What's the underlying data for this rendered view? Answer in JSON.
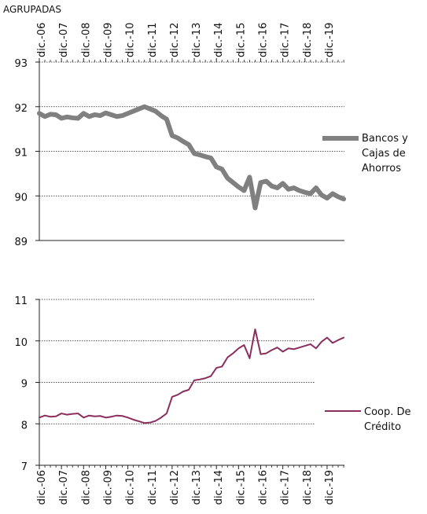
{
  "header_text": "AGRUPADAS",
  "categories": [
    "dic.-06",
    "dic.-07",
    "dic.-08",
    "dic.-09",
    "dic.-10",
    "dic.-11",
    "dic.-12",
    "dic.-13",
    "dic.-14",
    "dic.-15",
    "dic.-16",
    "dic.-17",
    "dic.-18",
    "dic.-19"
  ],
  "chart_data": [
    {
      "type": "line",
      "x_start": 2006.917,
      "x_step": 0.25,
      "ylim": [
        89,
        93
      ],
      "yticks": [
        89,
        90,
        91,
        92,
        93
      ],
      "grid": true,
      "legend_position": "right",
      "series": [
        {
          "name": "Bancos y Cajas de Ahorros",
          "color": "#808080",
          "values": [
            91.85,
            91.78,
            91.83,
            91.82,
            91.74,
            91.77,
            91.75,
            91.74,
            91.85,
            91.78,
            91.82,
            91.8,
            91.86,
            91.82,
            91.78,
            91.8,
            91.85,
            91.9,
            91.95,
            92.0,
            91.95,
            91.9,
            91.8,
            91.72,
            91.35,
            91.3,
            91.22,
            91.15,
            90.95,
            90.92,
            90.88,
            90.85,
            90.65,
            90.6,
            90.4,
            90.3,
            90.2,
            90.12,
            90.42,
            89.73,
            90.3,
            90.33,
            90.22,
            90.18,
            90.28,
            90.15,
            90.18,
            90.12,
            90.08,
            90.05,
            90.18,
            90.02,
            89.95,
            90.05,
            89.98,
            89.93
          ]
        }
      ]
    },
    {
      "type": "line",
      "x_start": 2006.917,
      "x_step": 0.25,
      "ylim": [
        7,
        11
      ],
      "yticks": [
        7,
        8,
        9,
        10,
        11
      ],
      "grid": true,
      "legend_position": "right",
      "series": [
        {
          "name": "Coop. De Crédito",
          "color": "#8b2e5e",
          "values": [
            8.15,
            8.2,
            8.17,
            8.18,
            8.25,
            8.22,
            8.24,
            8.25,
            8.15,
            8.2,
            8.18,
            8.19,
            8.15,
            8.17,
            8.2,
            8.19,
            8.15,
            8.1,
            8.06,
            8.02,
            8.03,
            8.07,
            8.15,
            8.25,
            8.65,
            8.7,
            8.78,
            8.82,
            9.05,
            9.07,
            9.1,
            9.15,
            9.35,
            9.38,
            9.6,
            9.7,
            9.82,
            9.9,
            9.58,
            10.28,
            9.68,
            9.7,
            9.78,
            9.84,
            9.74,
            9.82,
            9.8,
            9.84,
            9.88,
            9.92,
            9.82,
            9.98,
            10.08,
            9.95,
            10.02,
            10.08
          ]
        }
      ]
    }
  ]
}
